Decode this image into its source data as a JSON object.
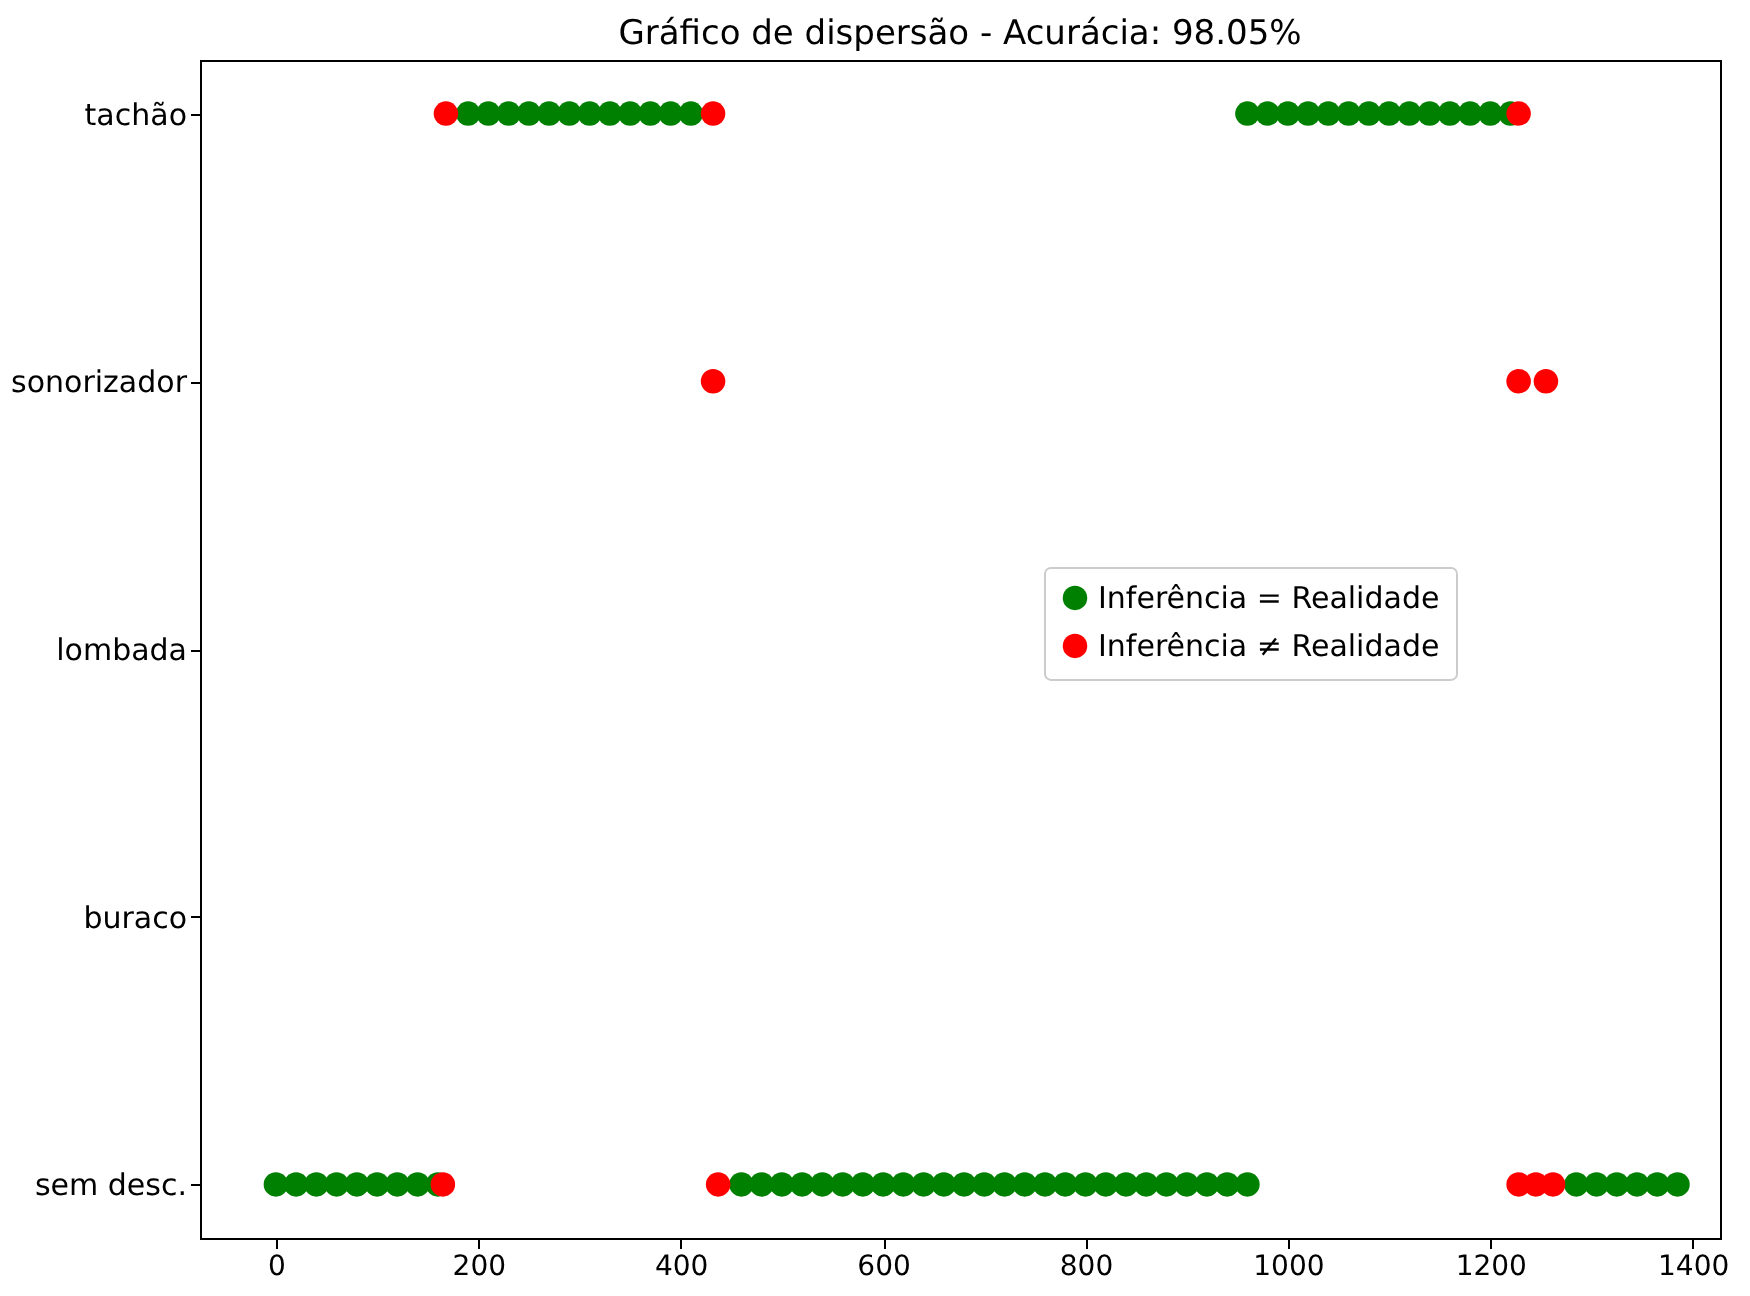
{
  "chart_data": {
    "type": "scatter",
    "orientation": "horizontal",
    "title": "Gráfico de dispersão - Acurácia: 98.05%",
    "categories": [
      "tachão",
      "sonorizador",
      "lombada",
      "buraco",
      "sem desc."
    ],
    "xlim": [
      -75,
      1427
    ],
    "xticks": [
      0,
      200,
      400,
      600,
      800,
      1000,
      1200,
      1400
    ],
    "grid": false,
    "legend": "right",
    "marker": "circle",
    "series": [
      {
        "name": "Inferência = Realidade",
        "color": "#008000",
        "values": [
          0,
          20,
          40,
          60,
          80,
          100,
          120,
          140,
          160,
          null,
          460,
          480,
          500,
          520,
          540,
          560,
          580,
          600,
          620,
          640,
          660,
          680,
          700,
          720,
          740,
          760,
          780,
          800,
          820,
          840,
          860,
          880,
          900,
          920,
          940,
          960,
          null,
          1285,
          1305,
          1325,
          1345,
          1365,
          1385,
          null,
          190,
          210,
          230,
          250,
          270,
          290,
          310,
          330,
          350,
          370,
          390,
          410,
          null,
          960,
          980,
          1000,
          1020,
          1040,
          1060,
          1080,
          1100,
          1120,
          1140,
          1160,
          1180,
          1200,
          1220
        ],
        "x": [
          "sem desc.",
          "sem desc.",
          "sem desc.",
          "sem desc.",
          "sem desc.",
          "sem desc.",
          "sem desc.",
          "sem desc.",
          "sem desc.",
          "sem desc.",
          "sem desc.",
          "sem desc.",
          "sem desc.",
          "sem desc.",
          "sem desc.",
          "sem desc.",
          "sem desc.",
          "sem desc.",
          "sem desc.",
          "sem desc.",
          "sem desc.",
          "sem desc.",
          "sem desc.",
          "sem desc.",
          "sem desc.",
          "sem desc.",
          "sem desc.",
          "sem desc.",
          "sem desc.",
          "sem desc.",
          "sem desc.",
          "sem desc.",
          "sem desc.",
          "sem desc.",
          "sem desc.",
          "sem desc.",
          "sem desc.",
          "sem desc.",
          "sem desc.",
          "sem desc.",
          "sem desc.",
          "sem desc.",
          "sem desc.",
          "tachão",
          "tachão",
          "tachão",
          "tachão",
          "tachão",
          "tachão",
          "tachão",
          "tachão",
          "tachão",
          "tachão",
          "tachão",
          "tachão",
          "tachão",
          "tachão",
          "tachão",
          "tachão",
          "tachão",
          "tachão",
          "tachão",
          "tachão",
          "tachão",
          "tachão",
          "tachão",
          "tachão",
          "tachão",
          "tachão",
          "tachão",
          "tachão"
        ]
      },
      {
        "name": "Inferência ≠ Realidade",
        "color": "#ff0000",
        "values": [
          168,
          432,
          1228,
          432,
          1228,
          1255,
          165,
          437,
          1228,
          1245,
          1262
        ],
        "x": [
          "tachão",
          "tachão",
          "tachão",
          "sonorizador",
          "sonorizador",
          "sonorizador",
          "sem desc.",
          "sem desc.",
          "sem desc.",
          "sem desc.",
          "sem desc."
        ]
      }
    ]
  }
}
